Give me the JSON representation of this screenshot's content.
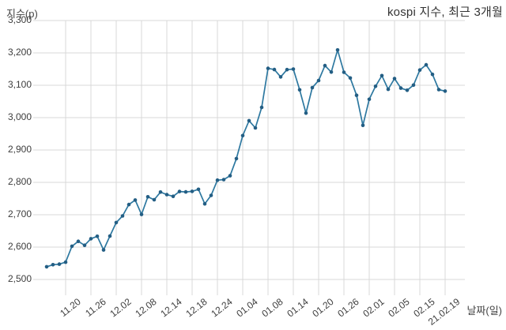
{
  "header": {
    "title": "kospi 지수, 최근 3개월",
    "y_axis_unit": "지수(p)",
    "x_axis_unit": "날짜(일)"
  },
  "colors": {
    "background": "#ffffff",
    "gridline": "#d8d8d8",
    "line": "#2d78a0",
    "marker": "#235e84",
    "tick_text": "#3d3d3d",
    "title_text": "#333333"
  },
  "chart_data": {
    "type": "line",
    "title": "kospi 지수, 최근 3개월",
    "xlabel": "날짜(일)",
    "ylabel": "지수(p)",
    "ylim": [
      2500,
      3300
    ],
    "y_ticks": [
      2500,
      2600,
      2700,
      2800,
      2900,
      3000,
      3100,
      3200,
      3300
    ],
    "grid": true,
    "legend_position": "none",
    "x_tick_labels": [
      "11.20",
      "11.26",
      "12.02",
      "12.08",
      "12.14",
      "12.18",
      "12.24",
      "01.04",
      "01.08",
      "01.14",
      "01.20",
      "01.26",
      "02.01",
      "02.05",
      "02.15",
      "21.02.19"
    ],
    "x_tick_indices": [
      3,
      7,
      11,
      15,
      19,
      23,
      27,
      31,
      35,
      39,
      43,
      47,
      51,
      55,
      59,
      63
    ],
    "series": [
      {
        "name": "KOSPI",
        "color": "#2d78a0",
        "marker_color": "#235e84",
        "x": [
          "11.17",
          "11.18",
          "11.19",
          "11.20",
          "11.23",
          "11.24",
          "11.25",
          "11.26",
          "11.27",
          "11.30",
          "12.01",
          "12.02",
          "12.03",
          "12.04",
          "12.07",
          "12.08",
          "12.09",
          "12.10",
          "12.11",
          "12.14",
          "12.15",
          "12.16",
          "12.17",
          "12.18",
          "12.21",
          "12.22",
          "12.23",
          "12.24",
          "12.28",
          "12.29",
          "12.30",
          "01.04",
          "01.05",
          "01.06",
          "01.07",
          "01.08",
          "01.11",
          "01.12",
          "01.13",
          "01.14",
          "01.15",
          "01.18",
          "01.19",
          "01.20",
          "01.21",
          "01.22",
          "01.25",
          "01.26",
          "01.27",
          "01.28",
          "01.29",
          "02.01",
          "02.02",
          "02.03",
          "02.04",
          "02.05",
          "02.08",
          "02.09",
          "02.10",
          "02.15",
          "02.16",
          "02.17",
          "02.18",
          "02.19"
        ],
        "values": [
          2539.15,
          2545.64,
          2547.42,
          2553.5,
          2602.59,
          2617.76,
          2605.67,
          2625.91,
          2633.45,
          2591.34,
          2634.25,
          2675.9,
          2696.22,
          2731.45,
          2745.44,
          2700.93,
          2755.47,
          2746.46,
          2770.06,
          2762.2,
          2756.82,
          2771.79,
          2770.43,
          2772.18,
          2778.65,
          2733.68,
          2759.82,
          2806.86,
          2808.6,
          2820.51,
          2873.47,
          2944.45,
          2990.57,
          2968.21,
          3031.68,
          3152.18,
          3148.45,
          3125.95,
          3148.29,
          3149.93,
          3085.9,
          3013.93,
          3092.66,
          3114.55,
          3160.84,
          3140.63,
          3208.99,
          3140.31,
          3122.56,
          3069.05,
          2976.21,
          3056.53,
          3096.81,
          3129.68,
          3087.55,
          3120.63,
          3091.24,
          3084.67,
          3100.58,
          3147.0,
          3163.25,
          3133.73,
          3086.66,
          3082.0
        ]
      }
    ]
  }
}
